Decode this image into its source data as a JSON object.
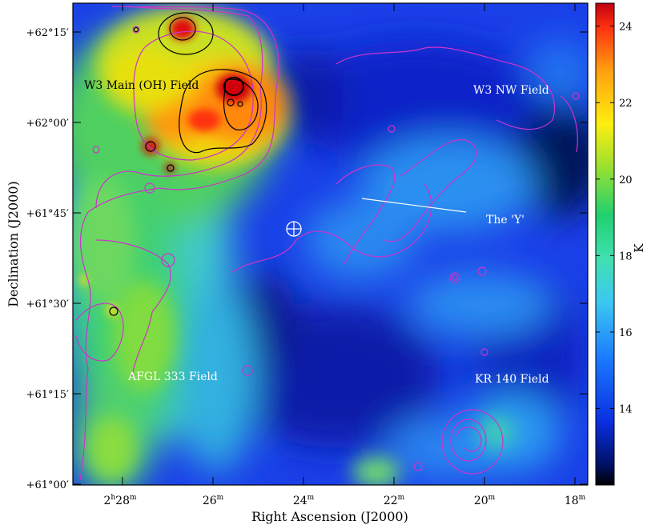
{
  "chart_data": {
    "type": "heatmap",
    "title": "",
    "xlabel": "Right Ascension (J2000)",
    "ylabel": "Declination (J2000)",
    "colorbar_label": "K",
    "x_ticks": [
      {
        "h": "2",
        "m": "28"
      },
      {
        "h": "",
        "m": "26"
      },
      {
        "h": "",
        "m": "24"
      },
      {
        "h": "",
        "m": "22"
      },
      {
        "h": "",
        "m": "20"
      },
      {
        "h": "",
        "m": "18"
      }
    ],
    "y_ticks": [
      "+62°15′",
      "+62°00′",
      "+61°45′",
      "+61°30′",
      "+61°15′",
      "+61°00′"
    ],
    "colorbar_ticks": [
      14,
      16,
      18,
      20,
      22,
      24
    ],
    "colorbar_range": [
      12,
      24.6
    ],
    "colormap": [
      "#000000",
      "#001060",
      "#0a2ee0",
      "#1a78ff",
      "#3cc8f0",
      "#40e0b0",
      "#20d070",
      "#9ae030",
      "#ffee10",
      "#ffa010",
      "#ff3010",
      "#c00010"
    ],
    "annotations": [
      {
        "text": "W3 Main (OH) Field",
        "color": "#000000"
      },
      {
        "text": "W3 NW Field",
        "color": "#ffffff"
      },
      {
        "text": "The 'Y'",
        "color": "#ffffff"
      },
      {
        "text": "AFGL 333 Field",
        "color": "#ffffff"
      },
      {
        "text": "KR 140 Field",
        "color": "#ffffff"
      }
    ],
    "contour_colors": {
      "outer": "#cc33cc",
      "inner": "#000000"
    },
    "marker": "circle-plus"
  }
}
